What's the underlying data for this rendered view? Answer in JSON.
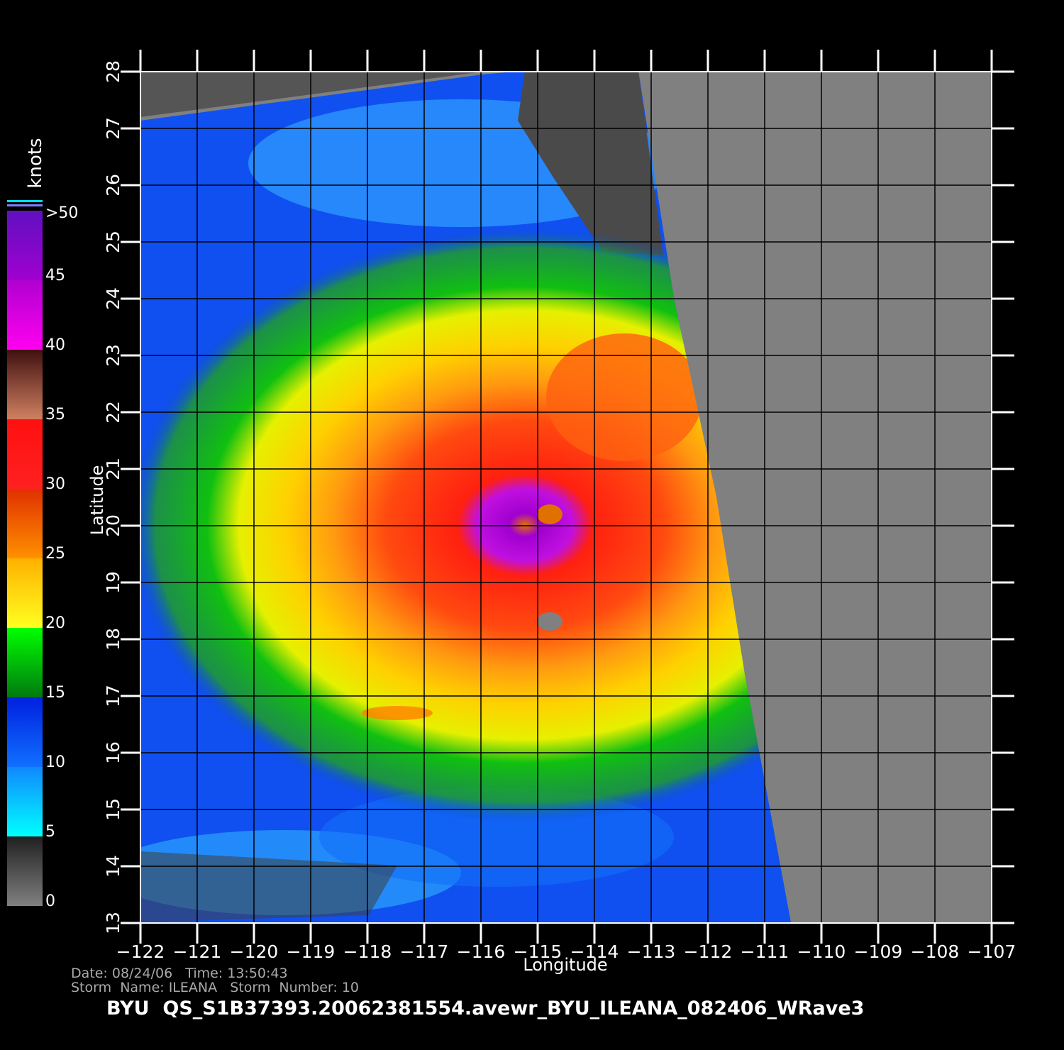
{
  "map": {
    "xlabel": "Longitude",
    "ylabel": "Latitude",
    "xlim": [
      -122,
      -107
    ],
    "ylim": [
      13,
      28
    ],
    "xticks": [
      {
        "value": -122,
        "label": "−122"
      },
      {
        "value": -121,
        "label": "−121"
      },
      {
        "value": -120,
        "label": "−120"
      },
      {
        "value": -119,
        "label": "−119"
      },
      {
        "value": -118,
        "label": "−118"
      },
      {
        "value": -117,
        "label": "−117"
      },
      {
        "value": -116,
        "label": "−116"
      },
      {
        "value": -115,
        "label": "−115"
      },
      {
        "value": -114,
        "label": "−114"
      },
      {
        "value": -113,
        "label": "−113"
      },
      {
        "value": -112,
        "label": "−112"
      },
      {
        "value": -111,
        "label": "−111"
      },
      {
        "value": -110,
        "label": "−110"
      },
      {
        "value": -109,
        "label": "−109"
      },
      {
        "value": -108,
        "label": "−108"
      },
      {
        "value": -107,
        "label": "−107"
      }
    ],
    "yticks": [
      13,
      14,
      15,
      16,
      17,
      18,
      19,
      20,
      21,
      22,
      23,
      24,
      25,
      26,
      27,
      28
    ],
    "colorbar": {
      "title": "knots",
      "lim": [
        0,
        50
      ],
      "ticks": [
        0,
        5,
        10,
        15,
        20,
        25,
        30,
        35,
        40,
        45,
        {
          "value": 50,
          "label": ">50"
        }
      ]
    },
    "footer": {
      "date_line": "Date: 08/24/06   Time: 13:50:43",
      "storm_line": "Storm  Name: ILEANA   Storm  Number: 10",
      "product": "BYU  QS_S1B37393.20062381554.avewr_BYU_ILEANA_082406_WRave3"
    }
  }
}
